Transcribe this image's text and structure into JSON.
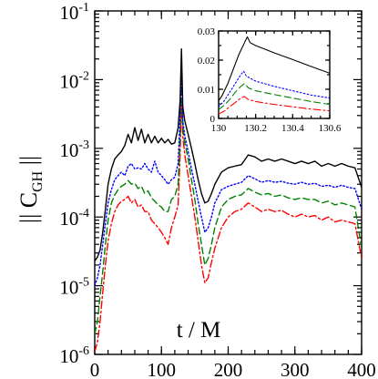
{
  "chart_data": [
    {
      "type": "line",
      "title": "",
      "xlabel": "t / M",
      "ylabel": "|| C_GH ||",
      "ylabel_main": "|| C",
      "ylabel_sub": "GH",
      "ylabel_close": " ||",
      "xlim": [
        0,
        400
      ],
      "ylim": [
        1e-06,
        0.1
      ],
      "yscale": "log",
      "grid": false,
      "legend": "none",
      "x_ticks": [
        {
          "value": 0,
          "label": "0"
        },
        {
          "value": 100,
          "label": "100"
        },
        {
          "value": 200,
          "label": "200"
        },
        {
          "value": 300,
          "label": "300"
        },
        {
          "value": 400,
          "label": "400"
        }
      ],
      "y_ticks": [
        {
          "value": 1e-06,
          "base": "10",
          "exp": "-6"
        },
        {
          "value": 1e-05,
          "base": "10",
          "exp": "-5"
        },
        {
          "value": 0.0001,
          "base": "10",
          "exp": "-4"
        },
        {
          "value": 0.001,
          "base": "10",
          "exp": "-3"
        },
        {
          "value": 0.01,
          "base": "10",
          "exp": "-2"
        },
        {
          "value": 0.1,
          "base": "10",
          "exp": "-1"
        }
      ],
      "series": [
        {
          "color": "#000000",
          "dash": "solid",
          "x": [
            0,
            4,
            8,
            12,
            16,
            20,
            25,
            30,
            35,
            40,
            45,
            50,
            55,
            60,
            65,
            70,
            75,
            80,
            85,
            90,
            95,
            100,
            105,
            110,
            115,
            120,
            125,
            128,
            130,
            132,
            135,
            140,
            145,
            150,
            155,
            160,
            165,
            170,
            175,
            180,
            190,
            200,
            210,
            220,
            230,
            240,
            250,
            260,
            270,
            280,
            290,
            300,
            310,
            320,
            330,
            340,
            350,
            360,
            370,
            380,
            390,
            400
          ],
          "y": [
            2.3e-05,
            2.6e-05,
            3.3e-05,
            6e-05,
            0.00013,
            0.0003,
            0.0005,
            0.0007,
            0.0008,
            0.0009,
            0.0011,
            0.0016,
            0.0012,
            0.002,
            0.0013,
            0.0019,
            0.0012,
            0.0016,
            0.0012,
            0.0015,
            0.0012,
            0.0014,
            0.0012,
            0.00135,
            0.00115,
            0.0012,
            0.002,
            0.005,
            0.028,
            0.004,
            0.0025,
            0.0016,
            0.001,
            0.0006,
            0.00035,
            0.00022,
            0.00016,
            0.00017,
            0.00022,
            0.0003,
            0.00045,
            0.00052,
            0.00055,
            0.00058,
            0.0008,
            0.00075,
            0.00065,
            0.0007,
            0.00065,
            0.0007,
            0.00065,
            0.0006,
            0.00065,
            0.0006,
            0.00065,
            0.00055,
            0.0006,
            0.00055,
            0.0006,
            0.00055,
            0.00052,
            0.00027
          ]
        },
        {
          "color": "#0000ff",
          "dash": "dotted",
          "x": [
            0,
            4,
            8,
            12,
            16,
            20,
            25,
            30,
            35,
            40,
            45,
            50,
            55,
            60,
            65,
            70,
            75,
            80,
            85,
            90,
            95,
            100,
            105,
            110,
            115,
            120,
            125,
            128,
            130,
            132,
            135,
            140,
            145,
            150,
            155,
            160,
            165,
            170,
            175,
            180,
            190,
            200,
            210,
            220,
            230,
            240,
            250,
            260,
            270,
            280,
            290,
            300,
            310,
            320,
            330,
            340,
            350,
            360,
            370,
            380,
            390,
            400
          ],
          "y": [
            1e-05,
            1.3e-05,
            2e-05,
            4e-05,
            8e-05,
            0.00016,
            0.00025,
            0.00035,
            0.0004,
            0.00045,
            0.0004,
            0.00055,
            0.0006,
            0.0005,
            0.00052,
            0.0005,
            0.0006,
            0.0005,
            0.00045,
            0.00065,
            0.00045,
            0.0004,
            0.00035,
            0.0003,
            0.00035,
            0.00038,
            0.0006,
            0.003,
            0.016,
            0.0025,
            0.0015,
            0.0009,
            0.0005,
            0.0003,
            0.00017,
            0.0001,
            6e-05,
            7e-05,
            0.0001,
            0.00016,
            0.00025,
            0.00028,
            0.0003,
            0.00032,
            0.0004,
            0.00036,
            0.00032,
            0.00034,
            0.00032,
            0.00033,
            0.00031,
            0.0003,
            0.00032,
            0.0003,
            0.00031,
            0.00028,
            0.00029,
            0.00027,
            0.00029,
            0.00027,
            0.00026,
            0.00013
          ]
        },
        {
          "color": "#008000",
          "dash": "dashed",
          "x": [
            0,
            4,
            8,
            12,
            16,
            20,
            25,
            30,
            35,
            40,
            45,
            50,
            55,
            60,
            65,
            70,
            75,
            80,
            85,
            90,
            95,
            100,
            105,
            110,
            115,
            120,
            125,
            128,
            130,
            132,
            135,
            140,
            145,
            150,
            155,
            160,
            165,
            170,
            175,
            180,
            190,
            200,
            210,
            220,
            230,
            240,
            250,
            260,
            270,
            280,
            290,
            300,
            310,
            320,
            330,
            340,
            350,
            360,
            370,
            380,
            390,
            400
          ],
          "y": [
            2e-06,
            3e-06,
            7e-06,
            1.6e-05,
            4e-05,
            9e-05,
            0.00016,
            0.00021,
            0.00025,
            0.00028,
            0.0003,
            0.00034,
            0.0003,
            0.00031,
            0.00026,
            0.00028,
            0.00022,
            0.00024,
            0.00019,
            0.00017,
            0.00015,
            0.00014,
            0.00012,
            0.00012,
            0.00018,
            0.0002,
            0.0003,
            0.0015,
            0.011,
            0.002,
            0.0012,
            0.0007,
            0.00035,
            0.00018,
            8e-05,
            4e-05,
            2e-05,
            2.5e-05,
            4e-05,
            7e-05,
            0.00014,
            0.00018,
            0.0002,
            0.00021,
            0.00026,
            0.00023,
            0.00021,
            0.00022,
            0.0002,
            0.00021,
            0.00019,
            0.00018,
            0.00019,
            0.00018,
            0.00018,
            0.00016,
            0.00017,
            0.00015,
            0.00016,
            0.00015,
            0.00014,
            3.5e-05
          ]
        },
        {
          "color": "#ff0000",
          "dash": "dashdot",
          "x": [
            0,
            4,
            8,
            12,
            16,
            20,
            25,
            30,
            35,
            40,
            45,
            50,
            55,
            60,
            65,
            70,
            75,
            80,
            85,
            90,
            95,
            100,
            105,
            110,
            115,
            120,
            125,
            128,
            130,
            132,
            135,
            140,
            145,
            150,
            155,
            160,
            165,
            170,
            175,
            180,
            190,
            200,
            210,
            220,
            230,
            240,
            250,
            260,
            270,
            280,
            290,
            300,
            310,
            320,
            330,
            340,
            350,
            360,
            370,
            380,
            390,
            400
          ],
          "y": [
            1.1e-06,
            1.5e-06,
            3e-06,
            8e-06,
            2e-05,
            4.5e-05,
            8e-05,
            0.00012,
            0.00015,
            0.00017,
            0.00018,
            0.0002,
            0.00016,
            0.00018,
            0.00014,
            0.00015,
            0.00012,
            0.00012,
            9e-05,
            8e-05,
            7e-05,
            6e-05,
            5e-05,
            4e-05,
            7e-05,
            0.0001,
            0.00015,
            0.0008,
            0.005,
            0.0015,
            0.0008,
            0.0004,
            0.0002,
            0.0001,
            4.5e-05,
            2e-05,
            1.1e-05,
            1.3e-05,
            2.2e-05,
            3.5e-05,
            7e-05,
            0.0001,
            0.00012,
            0.00013,
            0.00016,
            0.00014,
            0.00012,
            0.00013,
            0.00012,
            0.000125,
            0.00011,
            0.0001,
            0.00011,
            0.0001,
            0.000105,
            9e-05,
            0.0001,
            8.5e-05,
            9e-05,
            8.5e-05,
            8e-05,
            2.5e-05
          ]
        }
      ]
    },
    {
      "type": "line",
      "title": "",
      "xlabel": "",
      "ylabel": "",
      "xlim": [
        130,
        130.6
      ],
      "ylim": [
        0,
        0.03
      ],
      "yscale": "linear",
      "grid": false,
      "legend": "none",
      "x_ticks": [
        {
          "value": 130,
          "label": "130"
        },
        {
          "value": 130.2,
          "label": "130.2"
        },
        {
          "value": 130.4,
          "label": "130.4"
        },
        {
          "value": 130.6,
          "label": "130.6"
        }
      ],
      "y_ticks": [
        {
          "value": 0,
          "label": "0"
        },
        {
          "value": 0.01,
          "label": "0.01"
        },
        {
          "value": 0.02,
          "label": "0.02"
        },
        {
          "value": 0.03,
          "label": "0.03"
        }
      ],
      "series": [
        {
          "color": "#000000",
          "dash": "solid",
          "x": [
            130.0,
            130.02,
            130.05,
            130.08,
            130.11,
            130.14,
            130.155,
            130.17,
            130.2,
            130.3,
            130.4,
            130.5,
            130.6
          ],
          "y": [
            0.006,
            0.008,
            0.012,
            0.017,
            0.022,
            0.026,
            0.028,
            0.026,
            0.025,
            0.0225,
            0.0202,
            0.0178,
            0.0155
          ]
        },
        {
          "color": "#0000ff",
          "dash": "dotted",
          "x": [
            130.0,
            130.03,
            130.06,
            130.09,
            130.12,
            130.135,
            130.15,
            130.2,
            130.3,
            130.4,
            130.5,
            130.6
          ],
          "y": [
            0.004,
            0.006,
            0.009,
            0.012,
            0.015,
            0.0162,
            0.0145,
            0.0128,
            0.011,
            0.0095,
            0.008,
            0.007
          ]
        },
        {
          "color": "#008000",
          "dash": "dashed",
          "x": [
            130.0,
            130.03,
            130.06,
            130.09,
            130.12,
            130.14,
            130.16,
            130.2,
            130.3,
            130.4,
            130.5,
            130.6
          ],
          "y": [
            0.003,
            0.0045,
            0.0065,
            0.009,
            0.011,
            0.012,
            0.0105,
            0.0095,
            0.0082,
            0.007,
            0.0058,
            0.0048
          ]
        },
        {
          "color": "#ff0000",
          "dash": "dashdot",
          "x": [
            130.0,
            130.03,
            130.06,
            130.09,
            130.12,
            130.14,
            130.16,
            130.2,
            130.3,
            130.4,
            130.5,
            130.6
          ],
          "y": [
            0.0015,
            0.0025,
            0.004,
            0.0055,
            0.007,
            0.0075,
            0.0065,
            0.0058,
            0.0048,
            0.004,
            0.0032,
            0.0026
          ]
        }
      ]
    }
  ]
}
